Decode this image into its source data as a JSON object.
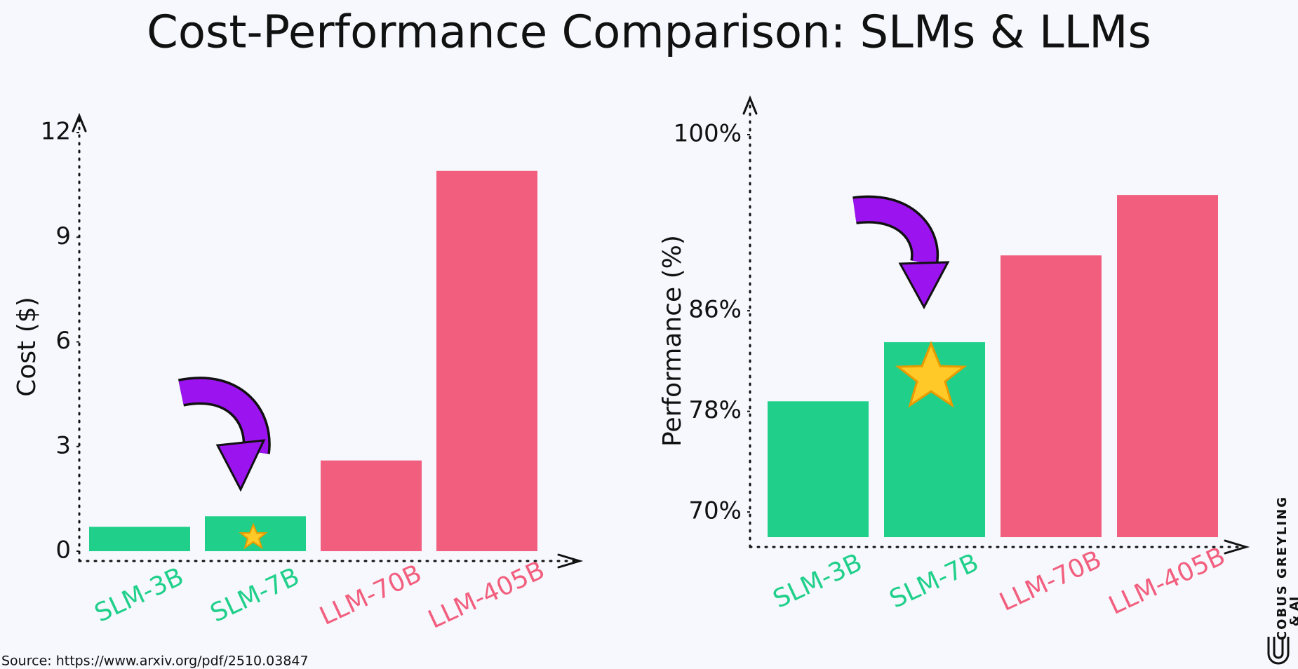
{
  "title": "Cost-Performance Comparison: SLMs & LLMs",
  "source": "Source: https://www.arxiv.org/pdf/2510.03847",
  "brand": {
    "line1": "COBUS GREYLING",
    "line2": "& AI"
  },
  "chart_data": [
    {
      "type": "bar",
      "y_label": "Cost ($)",
      "categories": [
        "SLM-3B",
        "SLM-7B",
        "LLM-70B",
        "LLM-405B"
      ],
      "values": [
        0.7,
        1.0,
        2.6,
        10.9
      ],
      "colors": [
        "#20d08a",
        "#20d08a",
        "#f25f7e",
        "#f25f7e"
      ],
      "ylim": [
        0,
        12
      ],
      "yticks": [
        0,
        3,
        6,
        9,
        12
      ]
    },
    {
      "type": "bar",
      "y_label": "Performance (%)",
      "categories": [
        "SLM-3B",
        "SLM-7B",
        "LLM-70B",
        "LLM-405B"
      ],
      "values": [
        78.8,
        83.5,
        90.4,
        95.2
      ],
      "colors": [
        "#20d08a",
        "#20d08a",
        "#f25f7e",
        "#f25f7e"
      ],
      "ylim": [
        68,
        100
      ],
      "yticks": [
        {
          "value": 70,
          "label": "70%"
        },
        {
          "value": 78,
          "label": "78%"
        },
        {
          "value": 86,
          "label": "86%"
        },
        {
          "value": 100,
          "label": "100%"
        }
      ]
    }
  ]
}
